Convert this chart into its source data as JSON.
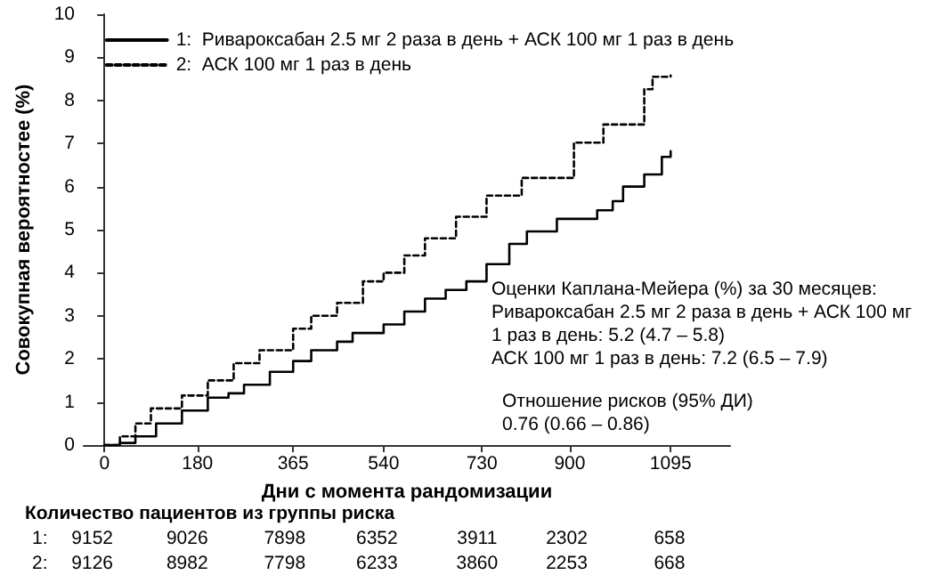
{
  "chart_data": {
    "type": "step",
    "xlabel": "Дни с момента рандомизации",
    "ylabel": "Совокупная вероятностее (%)",
    "xlim": [
      -40,
      1210
    ],
    "xticks": [
      0,
      180,
      365,
      540,
      730,
      900,
      1095
    ],
    "ylim": [
      0,
      10
    ],
    "yticks": [
      0,
      1,
      2,
      3,
      4,
      5,
      6,
      7,
      8,
      9,
      10
    ],
    "grid": false,
    "legend": "top left",
    "marker": "none",
    "series": [
      {
        "name": "1:  Ривароксабан 2.5 мг 2 раза в день + АСК 100 мг 1 раз в день",
        "color": "#000000",
        "line_style": "solid",
        "x": [
          0,
          30,
          60,
          100,
          150,
          200,
          240,
          270,
          320,
          365,
          400,
          450,
          480,
          540,
          580,
          620,
          660,
          700,
          739,
          783,
          817,
          875,
          953,
          983,
          1003,
          1044,
          1078,
          1095
        ],
        "values": [
          0,
          0.05,
          0.2,
          0.5,
          0.8,
          1.1,
          1.2,
          1.4,
          1.7,
          1.95,
          2.2,
          2.4,
          2.6,
          2.8,
          3.1,
          3.4,
          3.6,
          3.8,
          4.2,
          4.67,
          4.96,
          5.25,
          5.45,
          5.66,
          6.0,
          6.28,
          6.69,
          6.82
        ]
      },
      {
        "name": "2:  АСК 100 мг 1 раз в день",
        "color": "#000000",
        "line_style": "dashed",
        "x": [
          0,
          30,
          60,
          90,
          150,
          200,
          250,
          300,
          365,
          400,
          450,
          500,
          540,
          580,
          620,
          680,
          739,
          807,
          908,
          965,
          1044,
          1060,
          1095
        ],
        "values": [
          0,
          0.2,
          0.5,
          0.85,
          1.15,
          1.5,
          1.9,
          2.2,
          2.7,
          3.0,
          3.3,
          3.8,
          4.0,
          4.4,
          4.8,
          5.3,
          5.79,
          6.2,
          7.02,
          7.44,
          8.26,
          8.55,
          8.58
        ]
      }
    ],
    "annotations": [
      "Оценки Каплана-Мейера (%) за 30 месяцев:",
      "Ривароксабан 2.5 мг 2 раза в день + АСК 100 мг",
      "1 раз в день: 5.2 (4.7 – 5.8)",
      "АСК 100 мг 1 раз в день: 7.2 (6.5 – 7.9)",
      "Отношение рисков (95% ДИ)",
      "0.76 (0.66 – 0.86)",
      "Количество пациентов из группы риска",
      "1: 9152 9026 7898 6352 3911 2302 658",
      "2: 9126 8982 7798 6233 3860 2253 668"
    ]
  }
}
